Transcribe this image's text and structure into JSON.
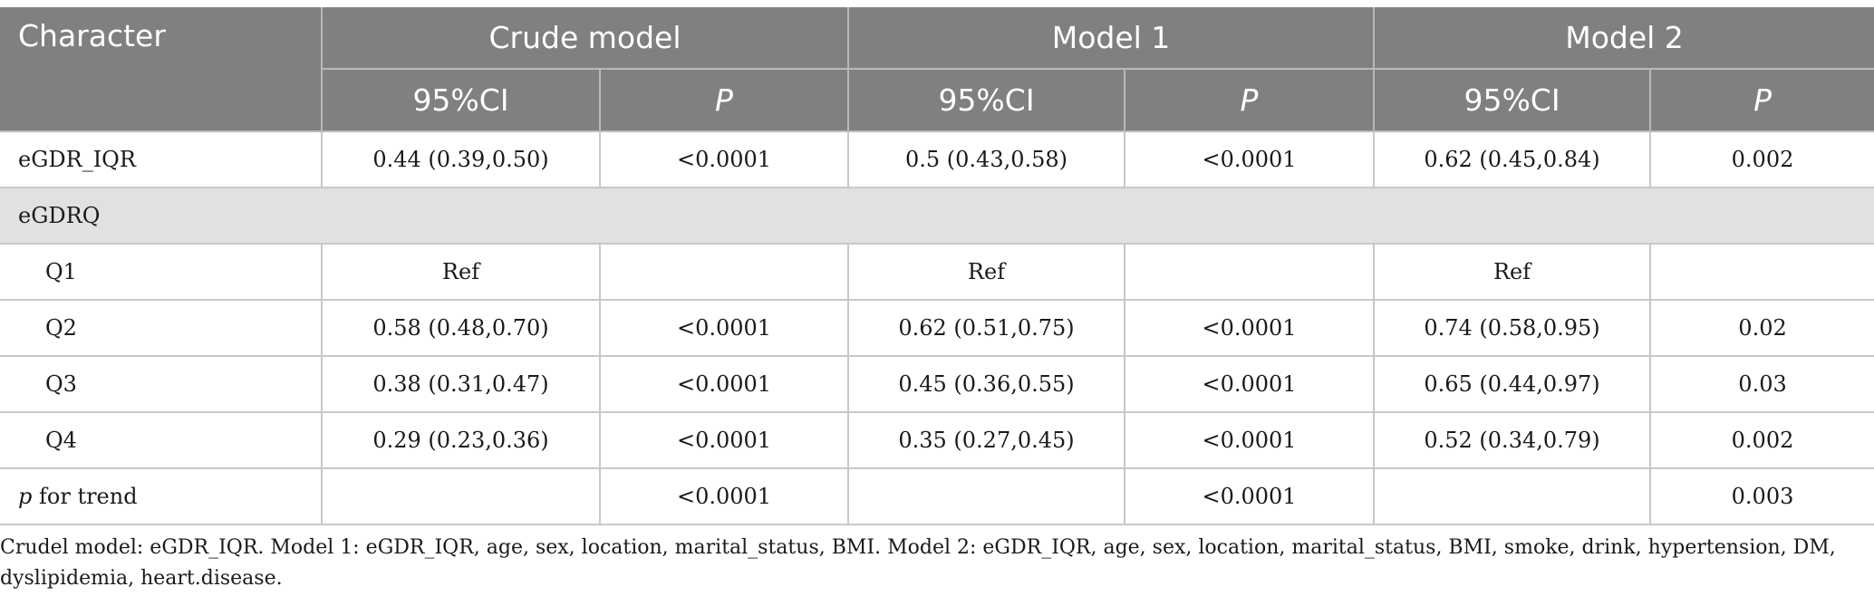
{
  "header": {
    "character": "Character",
    "crude_model": "Crude model",
    "model1": "Model 1",
    "model2": "Model 2",
    "ci": "95%CI",
    "p": "P"
  },
  "rows": {
    "egdr_iqr": {
      "label": "eGDR_IQR",
      "cells": [
        "0.44 (0.39,0.50)",
        "<0.0001",
        "0.5 (0.43,0.58)",
        "<0.0001",
        "0.62 (0.45,0.84)",
        "0.002"
      ]
    },
    "egdrq": {
      "label": "eGDRQ"
    },
    "q1": {
      "label": "Q1",
      "cells": [
        "Ref",
        "",
        "Ref",
        "",
        "Ref",
        ""
      ]
    },
    "q2": {
      "label": "Q2",
      "cells": [
        "0.58 (0.48,0.70)",
        "<0.0001",
        "0.62 (0.51,0.75)",
        "<0.0001",
        "0.74 (0.58,0.95)",
        "0.02"
      ]
    },
    "q3": {
      "label": "Q3",
      "cells": [
        "0.38 (0.31,0.47)",
        "<0.0001",
        "0.45 (0.36,0.55)",
        "<0.0001",
        "0.65 (0.44,0.97)",
        "0.03"
      ]
    },
    "q4": {
      "label": "Q4",
      "cells": [
        "0.29 (0.23,0.36)",
        "<0.0001",
        "0.35 (0.27,0.45)",
        "<0.0001",
        "0.52 (0.34,0.79)",
        "0.002"
      ]
    },
    "trend": {
      "label_p": "p",
      "label_rest": " for trend",
      "cells": [
        "",
        "<0.0001",
        "",
        "<0.0001",
        "",
        "0.003"
      ]
    }
  },
  "footnote": "Crudel model: eGDR_IQR. Model 1: eGDR_IQR, age, sex, location, marital_status, BMI. Model 2: eGDR_IQR, age, sex, location, marital_status, BMI, smoke, drink, hypertension, DM, dyslipidemia, heart.disease.",
  "colors": {
    "header_bg": "#808080",
    "group_bg": "#e2e1e2",
    "header_text": "#ffffff"
  }
}
